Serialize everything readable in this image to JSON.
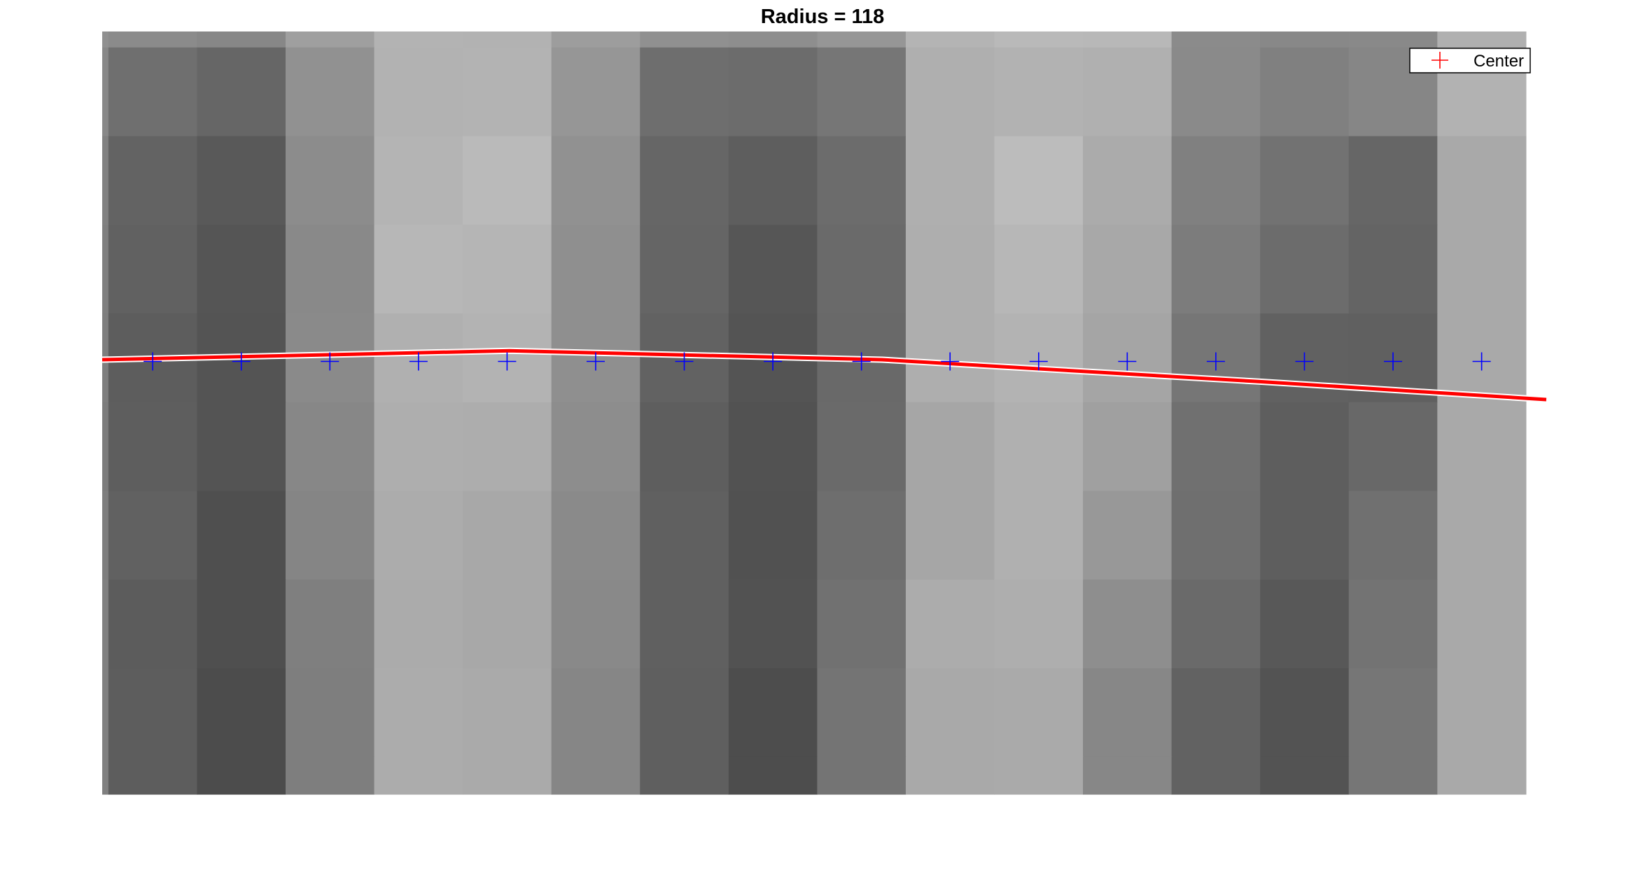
{
  "chart_data": {
    "type": "heatmap",
    "title": "Radius = 118",
    "xlabel": "",
    "ylabel": "",
    "axes_visible": false,
    "grid": false,
    "colormap": "gray",
    "image": {
      "x_range": [
        0,
        16.3
      ],
      "y_range": [
        0,
        8.6
      ],
      "first_column_offset": 0.07,
      "first_row_offset": 0.18,
      "gray_levels": [
        [
          144,
          139,
          135,
          159,
          179,
          178,
          157,
          144,
          142,
          150,
          180,
          185,
          184,
          139,
          136,
          137,
          176
        ],
        [
          136,
          111,
          102,
          145,
          178,
          179,
          150,
          110,
          108,
          118,
          175,
          178,
          176,
          138,
          128,
          134,
          178
        ],
        [
          129,
          99,
          89,
          140,
          180,
          186,
          145,
          102,
          94,
          108,
          175,
          188,
          171,
          128,
          114,
          102,
          169
        ],
        [
          127,
          97,
          85,
          137,
          183,
          181,
          143,
          101,
          86,
          106,
          174,
          183,
          168,
          124,
          108,
          100,
          169
        ],
        [
          126,
          93,
          84,
          138,
          176,
          179,
          143,
          98,
          84,
          105,
          174,
          179,
          165,
          118,
          97,
          96,
          169
        ],
        [
          124,
          94,
          84,
          135,
          174,
          173,
          141,
          94,
          82,
          106,
          166,
          176,
          160,
          112,
          94,
          104,
          169
        ],
        [
          126,
          97,
          79,
          133,
          172,
          168,
          138,
          96,
          81,
          110,
          166,
          176,
          152,
          111,
          94,
          112,
          169
        ],
        [
          128,
          92,
          79,
          127,
          171,
          168,
          137,
          96,
          82,
          113,
          172,
          174,
          142,
          106,
          88,
          115,
          169
        ],
        [
          128,
          93,
          76,
          126,
          172,
          170,
          134,
          95,
          77,
          116,
          169,
          170,
          135,
          98,
          83,
          118,
          169
        ],
        [
          128,
          93,
          76,
          126,
          172,
          170,
          134,
          95,
          77,
          116,
          169,
          170,
          135,
          98,
          83,
          118,
          169
        ]
      ]
    },
    "series": [
      {
        "type": "line",
        "color": "#ff0000",
        "x": [
          0.0,
          4.6,
          8.8,
          13.1,
          16.3
        ],
        "y": [
          4.9,
          5.0,
          4.9,
          4.65,
          4.45
        ]
      },
      {
        "type": "scatter",
        "marker": "+",
        "color": "#0000ff",
        "x": [
          0.57,
          1.57,
          2.57,
          3.57,
          4.57,
          5.57,
          6.57,
          7.57,
          8.57,
          9.57,
          10.57,
          11.57,
          12.57,
          13.57,
          14.57,
          15.57
        ],
        "y": [
          4.88,
          4.88,
          4.88,
          4.88,
          4.88,
          4.88,
          4.88,
          4.88,
          4.88,
          4.88,
          4.88,
          4.88,
          4.88,
          4.88,
          4.88,
          4.88
        ]
      }
    ],
    "legend": {
      "position": "top-right",
      "entries": [
        {
          "label": "Center",
          "marker": "+",
          "color": "#ff0000"
        }
      ]
    }
  }
}
